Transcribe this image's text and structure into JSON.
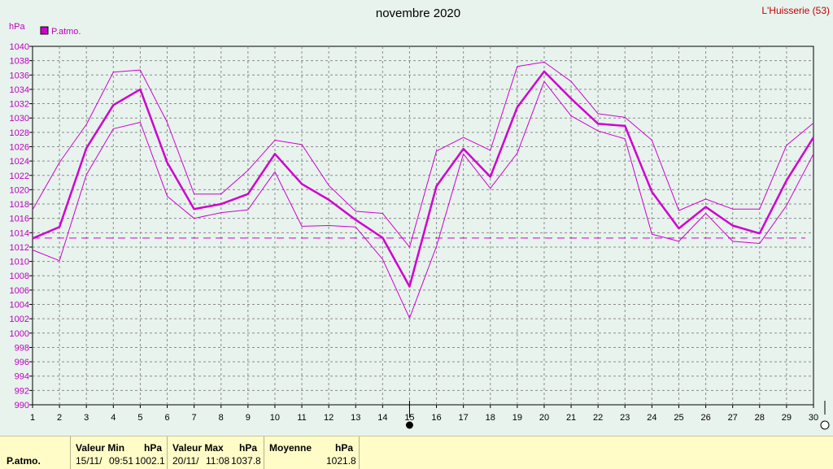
{
  "header": {
    "title": "novembre 2020",
    "station": "L'Huisserie (53)",
    "unit": "hPa"
  },
  "legend": {
    "label": "P.atmo.",
    "color": "#d000d0"
  },
  "chart_data": {
    "type": "line",
    "x": [
      1,
      2,
      3,
      4,
      5,
      6,
      7,
      8,
      9,
      10,
      11,
      12,
      13,
      14,
      15,
      16,
      17,
      18,
      19,
      20,
      21,
      22,
      23,
      24,
      25,
      26,
      27,
      28,
      29,
      30
    ],
    "ylabel": "hPa",
    "ylim": [
      990,
      1040
    ],
    "ytick_step": 2,
    "grid": true,
    "legend_position": "top-left",
    "series": [
      {
        "name": "P.atmo.",
        "role": "mean",
        "values": [
          1013.2,
          1014.8,
          1025.8,
          1031.8,
          1034.0,
          1023.8,
          1017.3,
          1018.0,
          1019.4,
          1025.0,
          1020.8,
          1018.6,
          1015.8,
          1013.3,
          1006.5,
          1020.5,
          1025.7,
          1021.8,
          1031.5,
          1036.5,
          1032.7,
          1029.2,
          1028.9,
          1019.7,
          1014.6,
          1017.6,
          1015.0,
          1013.9,
          1021.3,
          1027.3
        ]
      },
      {
        "role": "max",
        "values": [
          1017.2,
          1023.8,
          1029.1,
          1036.4,
          1036.7,
          1029.4,
          1019.4,
          1019.4,
          1022.7,
          1026.9,
          1026.3,
          1020.6,
          1017.0,
          1016.7,
          1012.0,
          1025.4,
          1027.3,
          1025.5,
          1037.2,
          1037.8,
          1035.1,
          1030.6,
          1030.1,
          1026.9,
          1017.1,
          1018.7,
          1017.3,
          1017.3,
          1026.2,
          1029.3
        ]
      },
      {
        "role": "min",
        "values": [
          1011.6,
          1010.1,
          1022.1,
          1028.5,
          1029.4,
          1019.1,
          1016.0,
          1016.8,
          1017.2,
          1022.5,
          1014.9,
          1015.0,
          1014.8,
          1010.3,
          1002.1,
          1012.1,
          1025.0,
          1020.2,
          1025.1,
          1035.1,
          1030.3,
          1028.2,
          1027.1,
          1013.8,
          1012.8,
          1016.7,
          1012.8,
          1012.5,
          1017.8,
          1025.0
        ]
      }
    ],
    "reference_line": 1013.25,
    "markers": {
      "full_moon_day": 30,
      "new_moon_day": 15
    }
  },
  "stats": {
    "parameter": "P.atmo.",
    "min": {
      "label": "Valeur Min",
      "unit": "hPa",
      "date": "15/11/",
      "time": "09:51",
      "value": "1002.1"
    },
    "max": {
      "label": "Valeur Max",
      "unit": "hPa",
      "date": "20/11/",
      "time": "11:08",
      "value": "1037.8"
    },
    "mean": {
      "label": "Moyenne",
      "unit": "hPa",
      "value": "1021.8"
    }
  }
}
